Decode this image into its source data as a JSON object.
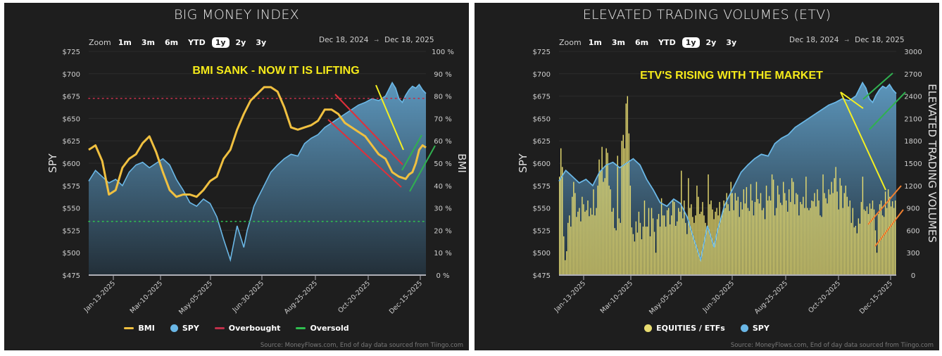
{
  "colors": {
    "panel_bg": "#1e1e1e",
    "spy_line": "#6ab7e6",
    "spy_fill_top": "#5f9cc4",
    "spy_fill_bottom": "#23303a",
    "bmi_line": "#f0c040",
    "overbought": "#c0304a",
    "oversold": "#2fbf4f",
    "volume_bar": "#e8dc70",
    "annotation_text": "#f5ea1a",
    "red_channel": "#e0303a",
    "yellow_trend": "#f5f020",
    "green_trend": "#30b050",
    "orange_trend": "#f08030"
  },
  "zoom": {
    "label": "Zoom",
    "buttons": [
      "1m",
      "3m",
      "6m",
      "YTD",
      "1y",
      "2y",
      "3y"
    ],
    "active": "1y"
  },
  "date_range": {
    "from": "Dec 18, 2024",
    "to": "Dec 18, 2025",
    "arrow": "→"
  },
  "source": "Source: MoneyFlows.com, End of day data sourced from Tiingo.com",
  "left_panel": {
    "title": "BIG MONEY INDEX",
    "annotation": "BMI SANK - NOW IT IS LIFTING",
    "left_axis_title": "SPY",
    "right_axis_title": "BMI",
    "legend": [
      {
        "label": "BMI",
        "type": "line",
        "color": "#f0c040"
      },
      {
        "label": "SPY",
        "type": "dot",
        "color": "#6ab7e6"
      },
      {
        "label": "Overbought",
        "type": "line",
        "color": "#c0304a"
      },
      {
        "label": "Oversold",
        "type": "line",
        "color": "#2fbf4f"
      }
    ]
  },
  "right_panel": {
    "title": "ELEVATED TRADING VOLUMES (ETV)",
    "annotation": "ETV'S RISING WITH THE MARKET",
    "left_axis_title": "SPY",
    "right_axis_title": "ELEVATED TRADING VOLUMES",
    "legend": [
      {
        "label": "EQUITIES / ETFs",
        "type": "dot",
        "color": "#e8dc70"
      },
      {
        "label": "SPY",
        "type": "dot",
        "color": "#6ab7e6"
      }
    ]
  },
  "chart_data": [
    {
      "type": "line",
      "title": "BIG MONEY INDEX",
      "xlabel": "",
      "ylabel": "SPY",
      "y2label": "BMI",
      "ylim": [
        475,
        725
      ],
      "y2lim": [
        0,
        100
      ],
      "yticks": [
        "$725",
        "$700",
        "$675",
        "$650",
        "$625",
        "$600",
        "$575",
        "$550",
        "$525",
        "$500",
        "$475"
      ],
      "y2ticks": [
        "100 %",
        "90 %",
        "80 %",
        "70 %",
        "60 %",
        "50 %",
        "40 %",
        "30 %",
        "20 %",
        "10 %",
        "0 %"
      ],
      "xticks": [
        "Jan-13-2025",
        "Mar-10-2025",
        "May-05-2025",
        "Jun-30-2025",
        "Aug-25-2025",
        "Oct-20-2025",
        "Dec-15-2025"
      ],
      "xtick_pos": [
        0.076,
        0.305,
        0.536,
        0.765,
        0.678,
        0.808,
        0.993
      ],
      "reference_lines": [
        {
          "name": "Overbought",
          "value_pct": 79
        },
        {
          "name": "Oversold",
          "value_pct": 24
        }
      ],
      "series": [
        {
          "name": "SPY",
          "axis": "left",
          "x": [
            0,
            0.02,
            0.04,
            0.06,
            0.08,
            0.1,
            0.12,
            0.14,
            0.16,
            0.18,
            0.2,
            0.22,
            0.24,
            0.26,
            0.28,
            0.3,
            0.32,
            0.34,
            0.36,
            0.38,
            0.4,
            0.42,
            0.44,
            0.45,
            0.46,
            0.47,
            0.48,
            0.49,
            0.5,
            0.52,
            0.54,
            0.56,
            0.58,
            0.6,
            0.62,
            0.64,
            0.66,
            0.68,
            0.7,
            0.72,
            0.74,
            0.76,
            0.78,
            0.8,
            0.82,
            0.84,
            0.86,
            0.88,
            0.9,
            0.91,
            0.92,
            0.93,
            0.94,
            0.95,
            0.96,
            0.97,
            0.98,
            0.99,
            1.0
          ],
          "values": [
            580,
            592,
            585,
            578,
            582,
            575,
            590,
            598,
            601,
            595,
            600,
            605,
            598,
            582,
            570,
            556,
            552,
            560,
            555,
            540,
            515,
            492,
            530,
            518,
            506,
            525,
            538,
            552,
            560,
            575,
            590,
            598,
            605,
            610,
            608,
            622,
            628,
            632,
            640,
            645,
            650,
            655,
            660,
            665,
            668,
            672,
            670,
            675,
            690,
            684,
            672,
            668,
            676,
            682,
            686,
            684,
            688,
            682,
            678
          ]
        },
        {
          "name": "BMI",
          "axis": "right",
          "x": [
            0,
            0.02,
            0.04,
            0.06,
            0.08,
            0.1,
            0.12,
            0.14,
            0.16,
            0.18,
            0.2,
            0.22,
            0.24,
            0.26,
            0.28,
            0.3,
            0.32,
            0.34,
            0.36,
            0.38,
            0.4,
            0.42,
            0.44,
            0.46,
            0.48,
            0.5,
            0.52,
            0.54,
            0.56,
            0.58,
            0.6,
            0.62,
            0.64,
            0.66,
            0.68,
            0.7,
            0.72,
            0.74,
            0.76,
            0.78,
            0.8,
            0.82,
            0.84,
            0.86,
            0.88,
            0.9,
            0.92,
            0.94,
            0.95,
            0.96,
            0.97,
            0.98,
            0.99,
            1.0
          ],
          "values": [
            56,
            58,
            51,
            36,
            38,
            48,
            52,
            54,
            59,
            62,
            55,
            46,
            38,
            35,
            36,
            36,
            35,
            38,
            42,
            44,
            52,
            56,
            65,
            72,
            78,
            81,
            84,
            84,
            82,
            75,
            66,
            65,
            66,
            67,
            69,
            74,
            74,
            72,
            68,
            66,
            64,
            62,
            58,
            54,
            52,
            46,
            44,
            43,
            45,
            46,
            50,
            56,
            58,
            57
          ]
        }
      ]
    },
    {
      "type": "bar",
      "title": "ELEVATED TRADING VOLUMES (ETV)",
      "xlabel": "",
      "ylabel": "SPY",
      "y2label": "ELEVATED TRADING VOLUMES",
      "ylim": [
        475,
        725
      ],
      "y2lim": [
        0,
        3000
      ],
      "yticks": [
        "$725",
        "$700",
        "$675",
        "$650",
        "$625",
        "$600",
        "$575",
        "$550",
        "$525",
        "$500",
        "$475"
      ],
      "y2ticks": [
        "3000",
        "2700",
        "2400",
        "2100",
        "1800",
        "1500",
        "1200",
        "900",
        "600",
        "300",
        "0"
      ],
      "xticks": [
        "Jan-13-2025",
        "Mar-10-2025",
        "May-05-2025",
        "Jun-30-2025",
        "Aug-25-2025",
        "Oct-20-2025",
        "Dec-15-2025"
      ],
      "series": [
        {
          "name": "EQUITIES / ETFs",
          "axis": "right",
          "type": "bar",
          "values": [
            1320,
            1700,
            1450,
            520,
            200,
            320,
            700,
            800,
            650,
            1050,
            1250,
            1100,
            780,
            850,
            900,
            720,
            1050,
            950,
            850,
            870,
            1000,
            790,
            900,
            810,
            1150,
            800,
            900,
            1200,
            1550,
            1400,
            1720,
            1250,
            1300,
            1700,
            1640,
            1200,
            1150,
            850,
            900,
            630,
            600,
            1600,
            760,
            700,
            1800,
            1880,
            1700,
            2300,
            2400,
            1900,
            1200,
            640,
            550,
            450,
            720,
            570,
            850,
            700,
            480,
            650,
            1000,
            650,
            650,
            900,
            520,
            900,
            760,
            580,
            300,
            750,
            820,
            650,
            1030,
            800,
            800,
            650,
            870,
            900,
            680,
            800,
            1000,
            980,
            660,
            720,
            900,
            850,
            1400,
            760,
            1000,
            700,
            550,
            1300,
            900,
            950,
            780,
            700,
            800,
            1200,
            1050,
            820,
            850,
            980,
            800,
            700,
            650,
            1350,
            950,
            1000,
            880,
            750,
            850,
            900,
            800,
            980,
            760,
            850,
            1000,
            900,
            1100,
            950,
            860,
            1250,
            1100,
            870,
            1100,
            1000,
            1050,
            780,
            980,
            880,
            1150,
            960,
            1180,
            900,
            860,
            1220,
            1000,
            800,
            980,
            1250,
            1020,
            960,
            1100,
            870,
            900,
            750,
            1200,
            1000,
            1060,
            1000,
            1350,
            1280,
            800,
            900,
            1200,
            1080,
            970,
            940,
            1250,
            1100,
            1000,
            850,
            1150,
            980,
            1300,
            1250,
            950,
            1100,
            1080,
            800,
            980,
            950,
            1050,
            900,
            1320,
            900,
            870,
            900,
            1000,
            990,
            1100,
            920,
            1150,
            1000,
            800,
            780,
            1350,
            1100,
            1030,
            960,
            1150,
            1080,
            1250,
            1100,
            1300,
            1450,
            1120,
            880,
            1300,
            1200,
            900,
            1100,
            1200,
            1050,
            920,
            1000,
            700,
            900,
            640,
            660,
            560,
            760,
            690,
            980,
            1320,
            880,
            860,
            920,
            820,
            960,
            890,
            1000,
            880,
            600,
            300,
            820,
            950,
            1000,
            800,
            780,
            1120,
            900,
            1150,
            1050,
            920,
            990,
            900,
            1000
          ]
        },
        {
          "name": "SPY",
          "axis": "left",
          "type": "area",
          "x": [
            0,
            0.02,
            0.04,
            0.06,
            0.08,
            0.1,
            0.12,
            0.14,
            0.16,
            0.18,
            0.2,
            0.22,
            0.24,
            0.26,
            0.28,
            0.3,
            0.32,
            0.34,
            0.36,
            0.38,
            0.4,
            0.42,
            0.44,
            0.45,
            0.46,
            0.47,
            0.48,
            0.49,
            0.5,
            0.52,
            0.54,
            0.56,
            0.58,
            0.6,
            0.62,
            0.64,
            0.66,
            0.68,
            0.7,
            0.72,
            0.74,
            0.76,
            0.78,
            0.8,
            0.82,
            0.84,
            0.86,
            0.88,
            0.9,
            0.91,
            0.92,
            0.93,
            0.94,
            0.95,
            0.96,
            0.97,
            0.98,
            0.99,
            1.0
          ],
          "values": [
            580,
            592,
            585,
            578,
            582,
            575,
            590,
            598,
            601,
            595,
            600,
            605,
            598,
            582,
            570,
            556,
            552,
            560,
            555,
            540,
            515,
            492,
            530,
            518,
            506,
            525,
            538,
            552,
            560,
            575,
            590,
            598,
            605,
            610,
            608,
            622,
            628,
            632,
            640,
            645,
            650,
            655,
            660,
            665,
            668,
            672,
            670,
            675,
            690,
            684,
            672,
            668,
            676,
            682,
            686,
            684,
            688,
            682,
            678
          ]
        }
      ]
    }
  ]
}
